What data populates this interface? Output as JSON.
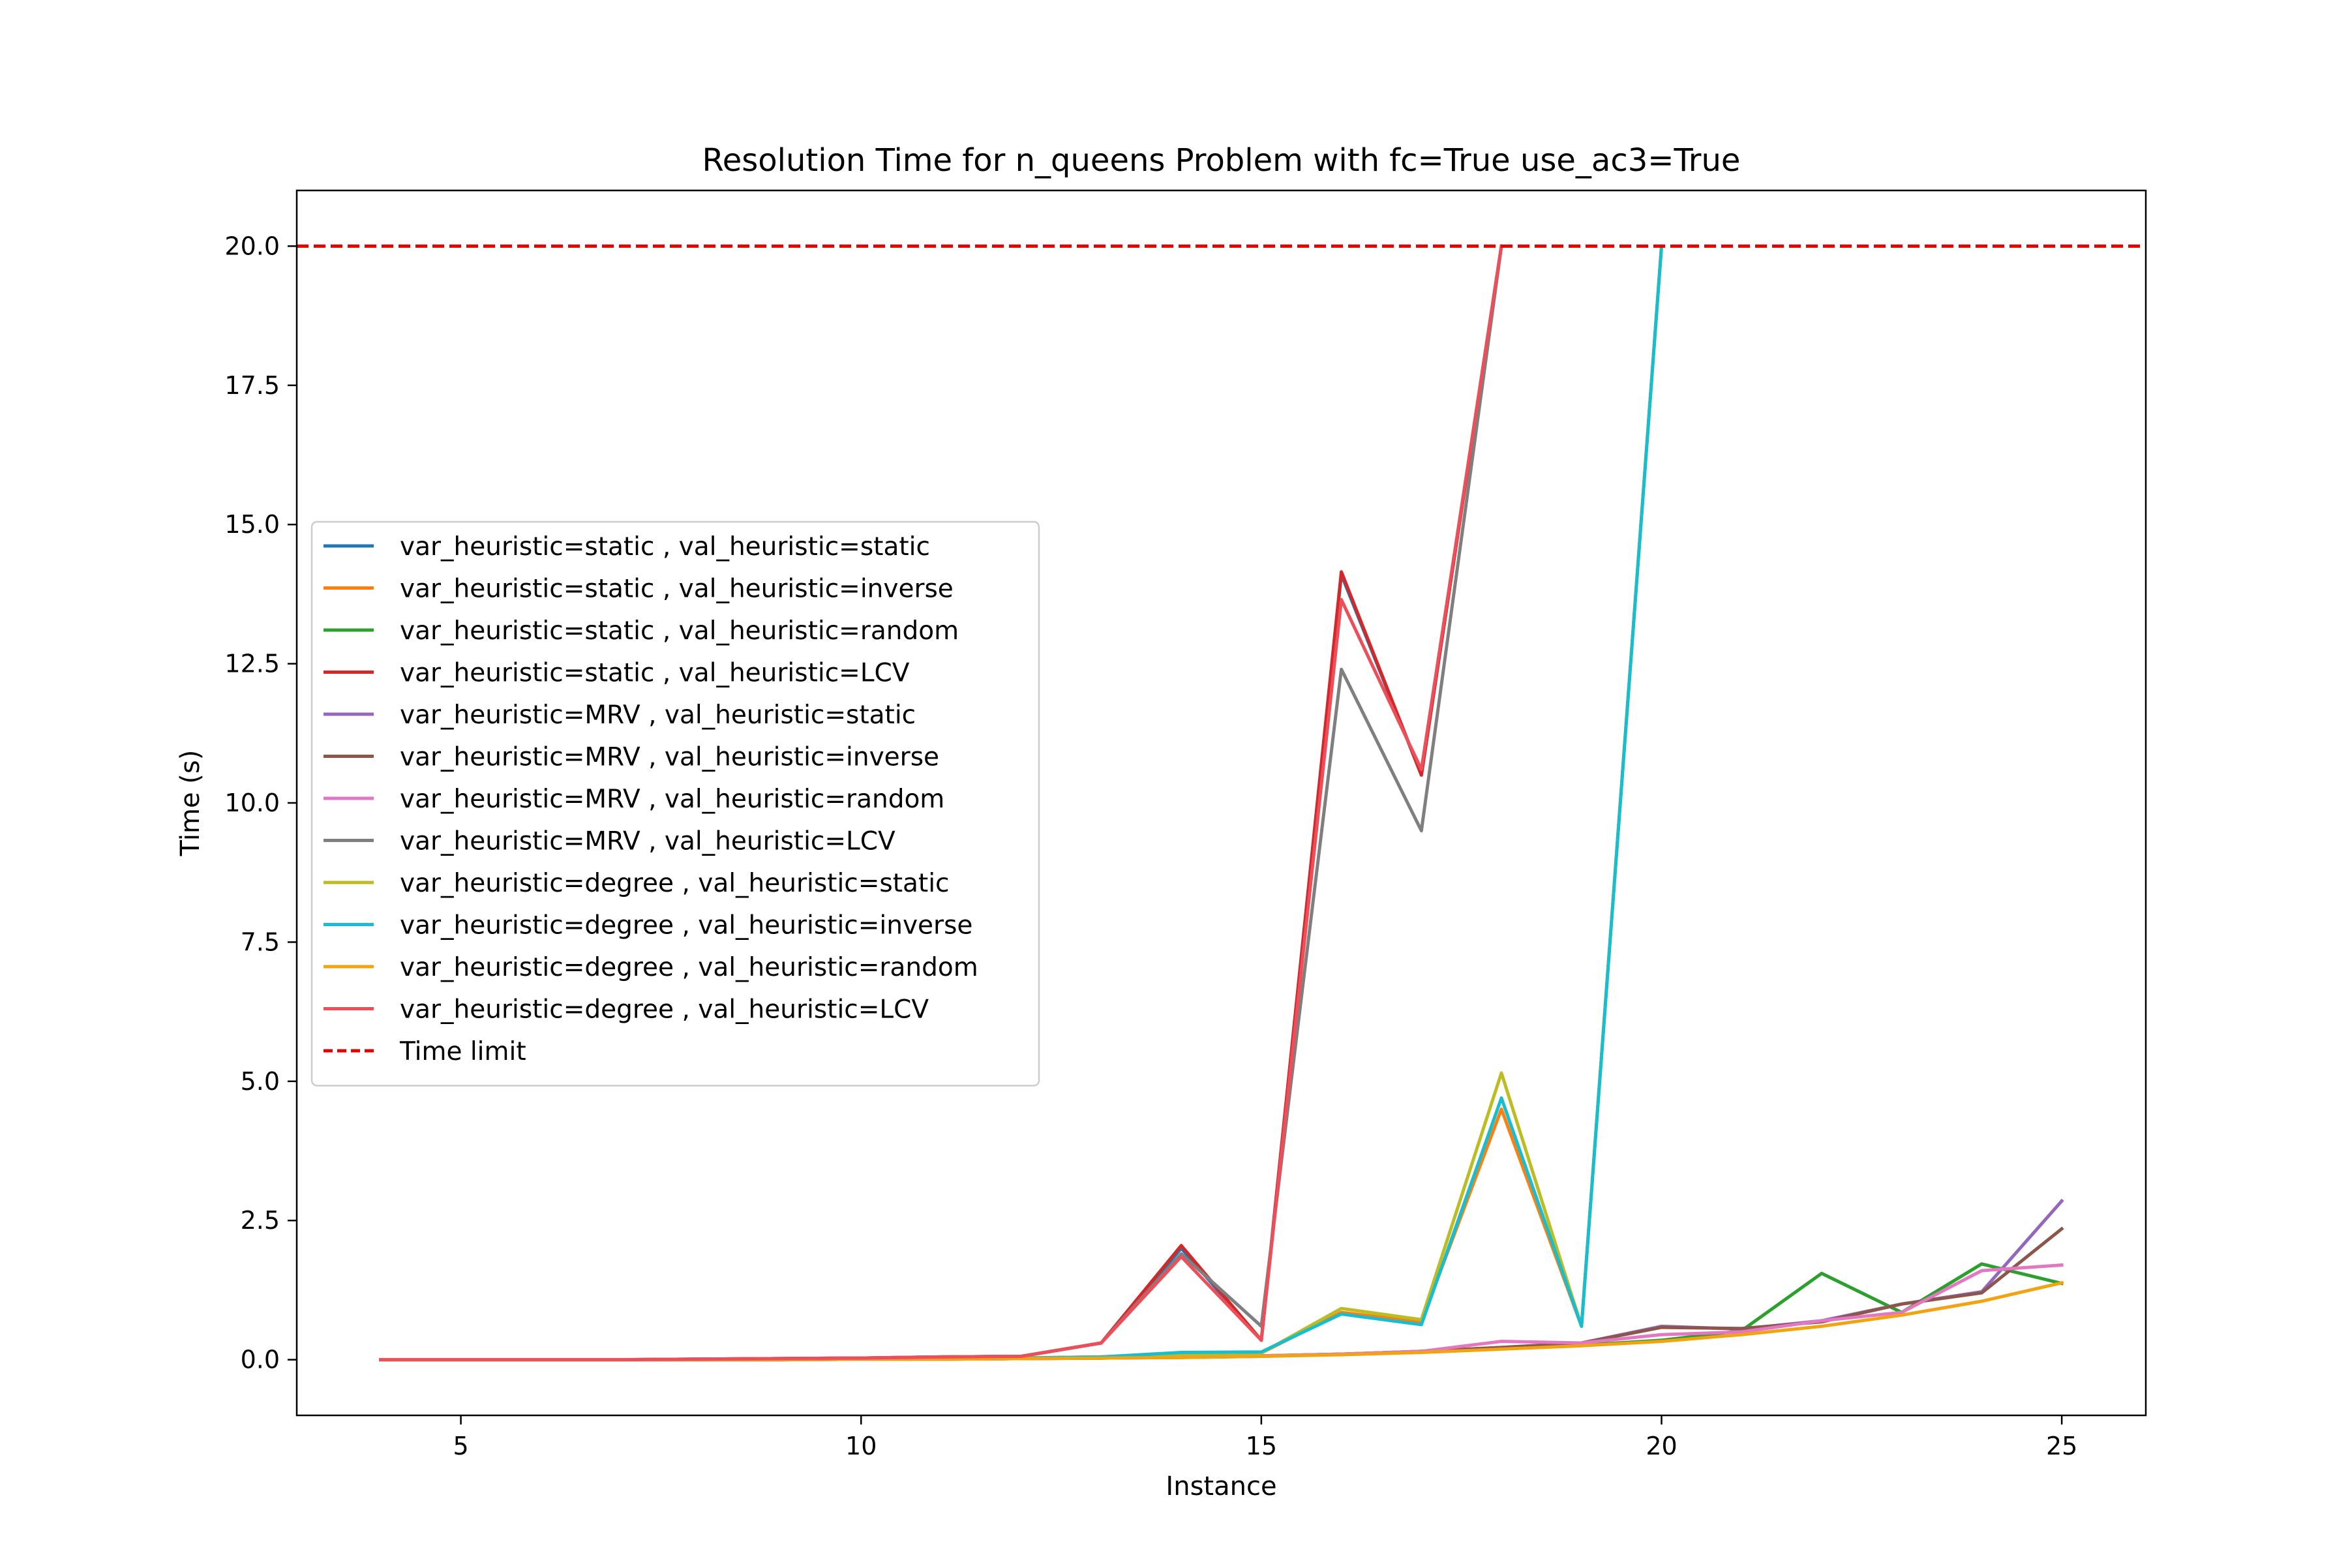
{
  "chart_data": {
    "type": "line",
    "title": "Resolution Time for n_queens Problem with fc=True use_ac3=True",
    "xlabel": "Instance",
    "ylabel": "Time (s)",
    "xlim": [
      2.95,
      26.05
    ],
    "ylim": [
      -1.0,
      21.0
    ],
    "xticks": [
      5,
      10,
      15,
      20,
      25
    ],
    "yticks": [
      0.0,
      2.5,
      5.0,
      7.5,
      10.0,
      12.5,
      15.0,
      17.5,
      20.0
    ],
    "xtick_labels": [
      "5",
      "10",
      "15",
      "20",
      "25"
    ],
    "ytick_labels": [
      "0.0",
      "2.5",
      "5.0",
      "7.5",
      "10.0",
      "12.5",
      "15.0",
      "17.5",
      "20.0"
    ],
    "grid": false,
    "legend_position": "center-left",
    "x": [
      4,
      5,
      6,
      7,
      8,
      9,
      10,
      11,
      12,
      13,
      14,
      15,
      16,
      17,
      18,
      19,
      20,
      21,
      22,
      23,
      24,
      25
    ],
    "series": [
      {
        "name": "var_heuristic=static , val_heuristic=static",
        "color": "#1f77b4",
        "x": [
          4,
          5,
          6,
          7,
          8,
          9,
          10,
          11,
          12,
          13,
          14,
          15,
          16,
          17,
          18
        ],
        "values": [
          0.0,
          0.0,
          0.0,
          0.0,
          0.01,
          0.02,
          0.03,
          0.05,
          0.06,
          0.3,
          2.0,
          0.35,
          14.1,
          10.5,
          20.0
        ]
      },
      {
        "name": "var_heuristic=static , val_heuristic=inverse",
        "color": "#ff7f0e",
        "x": [
          4,
          5,
          6,
          7,
          8,
          9,
          10,
          11,
          12,
          13,
          14,
          15,
          16,
          17,
          18,
          19,
          20
        ],
        "values": [
          0.0,
          0.0,
          0.0,
          0.0,
          0.0,
          0.01,
          0.01,
          0.02,
          0.03,
          0.05,
          0.1,
          0.12,
          0.85,
          0.68,
          4.5,
          0.6,
          20.0
        ]
      },
      {
        "name": "var_heuristic=static , val_heuristic=random",
        "color": "#2ca02c",
        "values": [
          0.0,
          0.0,
          0.0,
          0.0,
          0.0,
          0.0,
          0.01,
          0.01,
          0.02,
          0.03,
          0.04,
          0.06,
          0.1,
          0.14,
          0.2,
          0.26,
          0.35,
          0.52,
          1.55,
          0.85,
          1.72,
          1.37
        ]
      },
      {
        "name": "var_heuristic=static , val_heuristic=LCV",
        "color": "#d62728",
        "x": [
          4,
          5,
          6,
          7,
          8,
          9,
          10,
          11,
          12,
          13,
          14,
          15,
          16,
          17,
          18
        ],
        "values": [
          0.0,
          0.0,
          0.0,
          0.0,
          0.01,
          0.02,
          0.03,
          0.05,
          0.06,
          0.3,
          2.05,
          0.35,
          14.15,
          10.5,
          20.0
        ]
      },
      {
        "name": "var_heuristic=MRV , val_heuristic=static",
        "color": "#9467bd",
        "values": [
          0.0,
          0.0,
          0.0,
          0.0,
          0.0,
          0.0,
          0.01,
          0.01,
          0.02,
          0.03,
          0.05,
          0.07,
          0.1,
          0.15,
          0.22,
          0.3,
          0.6,
          0.55,
          0.7,
          1.0,
          1.22,
          2.85
        ]
      },
      {
        "name": "var_heuristic=MRV , val_heuristic=inverse",
        "color": "#8c564b",
        "values": [
          0.0,
          0.0,
          0.0,
          0.0,
          0.0,
          0.0,
          0.01,
          0.01,
          0.02,
          0.03,
          0.05,
          0.07,
          0.1,
          0.15,
          0.22,
          0.3,
          0.58,
          0.56,
          0.68,
          1.0,
          1.2,
          2.35
        ]
      },
      {
        "name": "var_heuristic=MRV , val_heuristic=random",
        "color": "#e377c2",
        "values": [
          0.0,
          0.0,
          0.0,
          0.0,
          0.0,
          0.0,
          0.01,
          0.01,
          0.02,
          0.03,
          0.05,
          0.07,
          0.1,
          0.15,
          0.33,
          0.3,
          0.45,
          0.5,
          0.7,
          0.85,
          1.6,
          1.7
        ]
      },
      {
        "name": "var_heuristic=MRV , val_heuristic=LCV",
        "color": "#7f7f7f",
        "x": [
          4,
          5,
          6,
          7,
          8,
          9,
          10,
          11,
          12,
          13,
          14,
          15,
          16,
          17,
          18
        ],
        "values": [
          0.0,
          0.0,
          0.0,
          0.0,
          0.01,
          0.02,
          0.03,
          0.05,
          0.06,
          0.3,
          1.9,
          0.6,
          12.4,
          9.5,
          20.0
        ]
      },
      {
        "name": "var_heuristic=degree , val_heuristic=static",
        "color": "#bcbd22",
        "x": [
          4,
          5,
          6,
          7,
          8,
          9,
          10,
          11,
          12,
          13,
          14,
          15,
          16,
          17,
          18,
          19,
          20
        ],
        "values": [
          0.0,
          0.0,
          0.0,
          0.0,
          0.0,
          0.01,
          0.01,
          0.02,
          0.03,
          0.05,
          0.1,
          0.12,
          0.92,
          0.72,
          5.15,
          0.6,
          20.0
        ]
      },
      {
        "name": "var_heuristic=degree , val_heuristic=inverse",
        "color": "#17becf",
        "x": [
          4,
          5,
          6,
          7,
          8,
          9,
          10,
          11,
          12,
          13,
          14,
          15,
          16,
          17,
          18,
          19,
          20
        ],
        "values": [
          0.0,
          0.0,
          0.0,
          0.0,
          0.0,
          0.01,
          0.01,
          0.02,
          0.03,
          0.05,
          0.13,
          0.14,
          0.82,
          0.63,
          4.7,
          0.6,
          20.0
        ]
      },
      {
        "name": "var_heuristic=degree , val_heuristic=random",
        "color": "#f2a30f",
        "values": [
          0.0,
          0.0,
          0.0,
          0.0,
          0.0,
          0.0,
          0.01,
          0.01,
          0.02,
          0.03,
          0.04,
          0.06,
          0.09,
          0.13,
          0.19,
          0.25,
          0.33,
          0.45,
          0.6,
          0.8,
          1.05,
          1.38
        ]
      },
      {
        "name": "var_heuristic=degree , val_heuristic=LCV",
        "color": "#ec4e5a",
        "x": [
          4,
          5,
          6,
          7,
          8,
          9,
          10,
          11,
          12,
          13,
          14,
          15,
          16,
          17,
          18
        ],
        "values": [
          0.0,
          0.0,
          0.0,
          0.0,
          0.01,
          0.02,
          0.03,
          0.05,
          0.06,
          0.3,
          1.85,
          0.35,
          13.65,
          10.6,
          20.0
        ]
      }
    ],
    "time_limit": {
      "name": "Time limit",
      "value": 20.0,
      "color": "#e60000",
      "style": "dashed"
    }
  }
}
